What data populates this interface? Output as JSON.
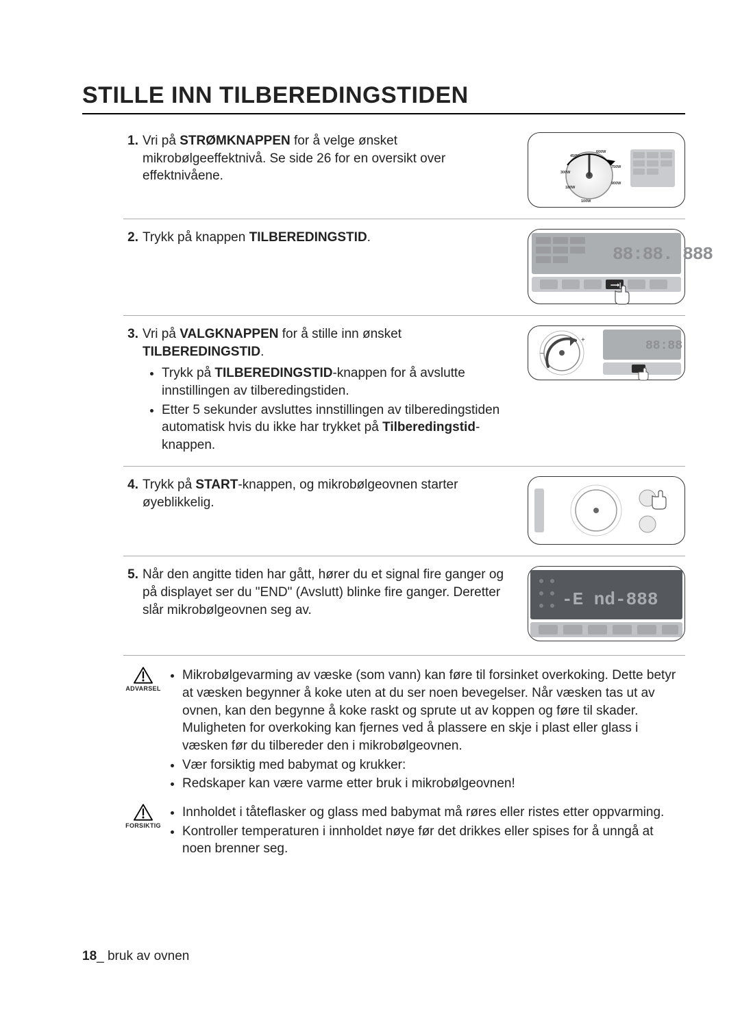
{
  "title": "STILLE INN TILBEREDINGSTIDEN",
  "steps": [
    {
      "num": "1.",
      "html": "Vri på <b>STRØMKNAPPEN</b> for å velge ønsket mikrobølgeeffektnivå. Se side 26 for en oversikt over effektnivåene.",
      "illus": "power-dial",
      "dial_labels": [
        "180W",
        "300W",
        "450W",
        "600W",
        "750W",
        "900W",
        "100W"
      ]
    },
    {
      "num": "2.",
      "html": "Trykk på knappen <b>TILBEREDINGSTID</b>.",
      "illus": "display-press",
      "display_text": "88:88. 888",
      "colors": {
        "panel": "#acafb2",
        "digits": "#8a8c8f"
      }
    },
    {
      "num": "3.",
      "html": "Vri på <b>VALGKNAPPEN</b> for å stille inn ønsket <b>TILBEREDINGSTID</b>.",
      "bullets": [
        "Trykk på <b>TILBEREDINGSTID</b>-knappen for å avslutte innstillingen av tilberedingstiden.",
        "Etter 5 sekunder avsluttes innstillingen av tilberedingstiden automatisk hvis du ikke har trykket på <b>Tilberedingstid</b>-knappen."
      ],
      "illus": "select-dial",
      "display_text": "88:88",
      "colors": {
        "panel": "#acafb2",
        "digits": "#8a8c8f"
      }
    },
    {
      "num": "4.",
      "html": "Trykk på <b>START</b>-knappen, og mikrobølgeovnen starter øyeblikkelig.",
      "illus": "start-press"
    },
    {
      "num": "5.",
      "html": "Når den angitte tiden har gått, hører du et signal fire ganger og på displayet ser du \"END\" (Avslutt) blinke fire ganger. Deretter slår mikrobølgeovnen seg av.",
      "illus": "end-display",
      "display_text": "-E nd-888",
      "colors": {
        "panel": "#4a4c50",
        "digits": "#8f9296"
      }
    }
  ],
  "warnings": [
    {
      "label": "ADVARSEL",
      "bullets": [
        "Mikrobølgevarming av væske (som vann) kan føre til forsinket overkoking. Dette betyr at væsken begynner å koke uten at du ser noen bevegelser. Når væsken tas ut av ovnen, kan den begynne å koke raskt og sprute ut av koppen og føre til skader. Muligheten for overkoking kan fjernes ved å plassere en skje i plast eller glass i væsken før du tilbereder den i mikrobølgeovnen.",
        "Vær forsiktig med babymat og krukker:",
        "Redskaper kan være varme etter bruk i mikrobølgeovnen!"
      ]
    },
    {
      "label": "FORSIKTIG",
      "bullets": [
        "Innholdet i tåteflasker og glass med babymat må røres eller ristes etter oppvarming.",
        "Kontroller temperaturen i innholdet nøye før det drikkes eller spises for å unngå at noen brenner seg."
      ]
    }
  ],
  "footer": {
    "page": "18",
    "label": "_ bruk av ovnen"
  },
  "palette": {
    "text": "#222222",
    "rule": "#aaaaaa",
    "border": "#333333",
    "panel_grey": "#acafb2",
    "panel_dark": "#4a4c50",
    "seg_dim": "#8a8c8f",
    "seg_lit": "#bfc2c5"
  },
  "fontsizes": {
    "title": 34,
    "body": 19,
    "warnlabel": 9
  }
}
